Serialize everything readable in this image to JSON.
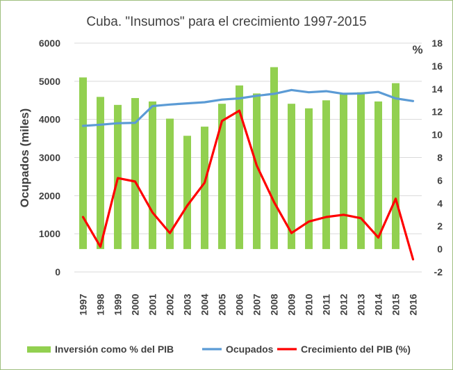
{
  "chart_data": {
    "type": "bar",
    "title": "Cuba. \"Insumos\" para el crecimiento 1997-2015",
    "categories": [
      "1997",
      "1998",
      "1999",
      "2000",
      "2001",
      "2002",
      "2003",
      "2004",
      "2005",
      "2006",
      "2007",
      "2008",
      "2009",
      "2010",
      "2011",
      "2012",
      "2013",
      "2014",
      "2015",
      "2016"
    ],
    "left_axis": {
      "label": "Ocupados (miles)",
      "min": 0,
      "max": 6000,
      "ticks": [
        "0",
        "1000",
        "2000",
        "3000",
        "4000",
        "5000",
        "6000"
      ]
    },
    "right_axis": {
      "label": "%",
      "min": -2,
      "max": 18,
      "ticks": [
        "-2",
        "0",
        "2",
        "4",
        "6",
        "8",
        "10",
        "12",
        "14",
        "16",
        "18"
      ]
    },
    "series": [
      {
        "name": "Inversión como % del PIB",
        "kind": "bar",
        "axis": "right",
        "color": "#92d050",
        "values": [
          15.0,
          13.3,
          12.6,
          13.2,
          12.9,
          11.4,
          9.9,
          10.7,
          12.7,
          14.3,
          13.6,
          15.9,
          12.7,
          12.3,
          13.0,
          13.6,
          13.7,
          12.9,
          14.5,
          null
        ]
      },
      {
        "name": "Ocupados",
        "kind": "line",
        "axis": "left",
        "color": "#5b9bd5",
        "values": [
          3830,
          3860,
          3900,
          3910,
          4350,
          4390,
          4420,
          4450,
          4520,
          4550,
          4620,
          4670,
          4770,
          4710,
          4740,
          4670,
          4680,
          4720,
          4550,
          4480
        ]
      },
      {
        "name": "Crecimiento del PIB (%)",
        "kind": "line",
        "axis": "right",
        "color": "#ff0000",
        "values": [
          2.8,
          0.2,
          6.2,
          5.9,
          3.2,
          1.4,
          3.8,
          5.8,
          11.2,
          12.1,
          7.3,
          4.1,
          1.4,
          2.4,
          2.8,
          3.0,
          2.7,
          1.0,
          4.4,
          -0.9
        ]
      }
    ]
  }
}
